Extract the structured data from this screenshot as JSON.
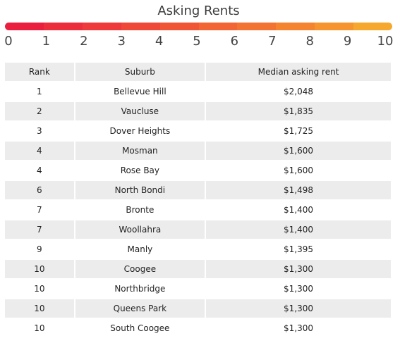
{
  "chart_data": {
    "type": "table",
    "title": "Asking Rents",
    "scale": {
      "ticks": [
        "0",
        "1",
        "2",
        "3",
        "4",
        "5",
        "6",
        "7",
        "8",
        "9",
        "10"
      ],
      "colors": [
        "#ea1f3f",
        "#ec2d3c",
        "#ee3a3a",
        "#ef4838",
        "#f05636",
        "#f26534",
        "#f37432",
        "#f58430",
        "#f6952f",
        "#f6a72e"
      ]
    },
    "columns": [
      "Rank",
      "Suburb",
      "Median asking rent"
    ],
    "rows": [
      {
        "rank": "1",
        "suburb": "Bellevue Hill",
        "rent": "$2,048"
      },
      {
        "rank": "2",
        "suburb": "Vaucluse",
        "rent": "$1,835"
      },
      {
        "rank": "3",
        "suburb": "Dover Heights",
        "rent": "$1,725"
      },
      {
        "rank": "4",
        "suburb": "Mosman",
        "rent": "$1,600"
      },
      {
        "rank": "4",
        "suburb": "Rose Bay",
        "rent": "$1,600"
      },
      {
        "rank": "6",
        "suburb": "North Bondi",
        "rent": "$1,498"
      },
      {
        "rank": "7",
        "suburb": "Bronte",
        "rent": "$1,400"
      },
      {
        "rank": "7",
        "suburb": "Woollahra",
        "rent": "$1,400"
      },
      {
        "rank": "9",
        "suburb": "Manly",
        "rent": "$1,395"
      },
      {
        "rank": "10",
        "suburb": "Coogee",
        "rent": "$1,300"
      },
      {
        "rank": "10",
        "suburb": "Northbridge",
        "rent": "$1,300"
      },
      {
        "rank": "10",
        "suburb": "Queens Park",
        "rent": "$1,300"
      },
      {
        "rank": "10",
        "suburb": "South Coogee",
        "rent": "$1,300"
      }
    ]
  }
}
